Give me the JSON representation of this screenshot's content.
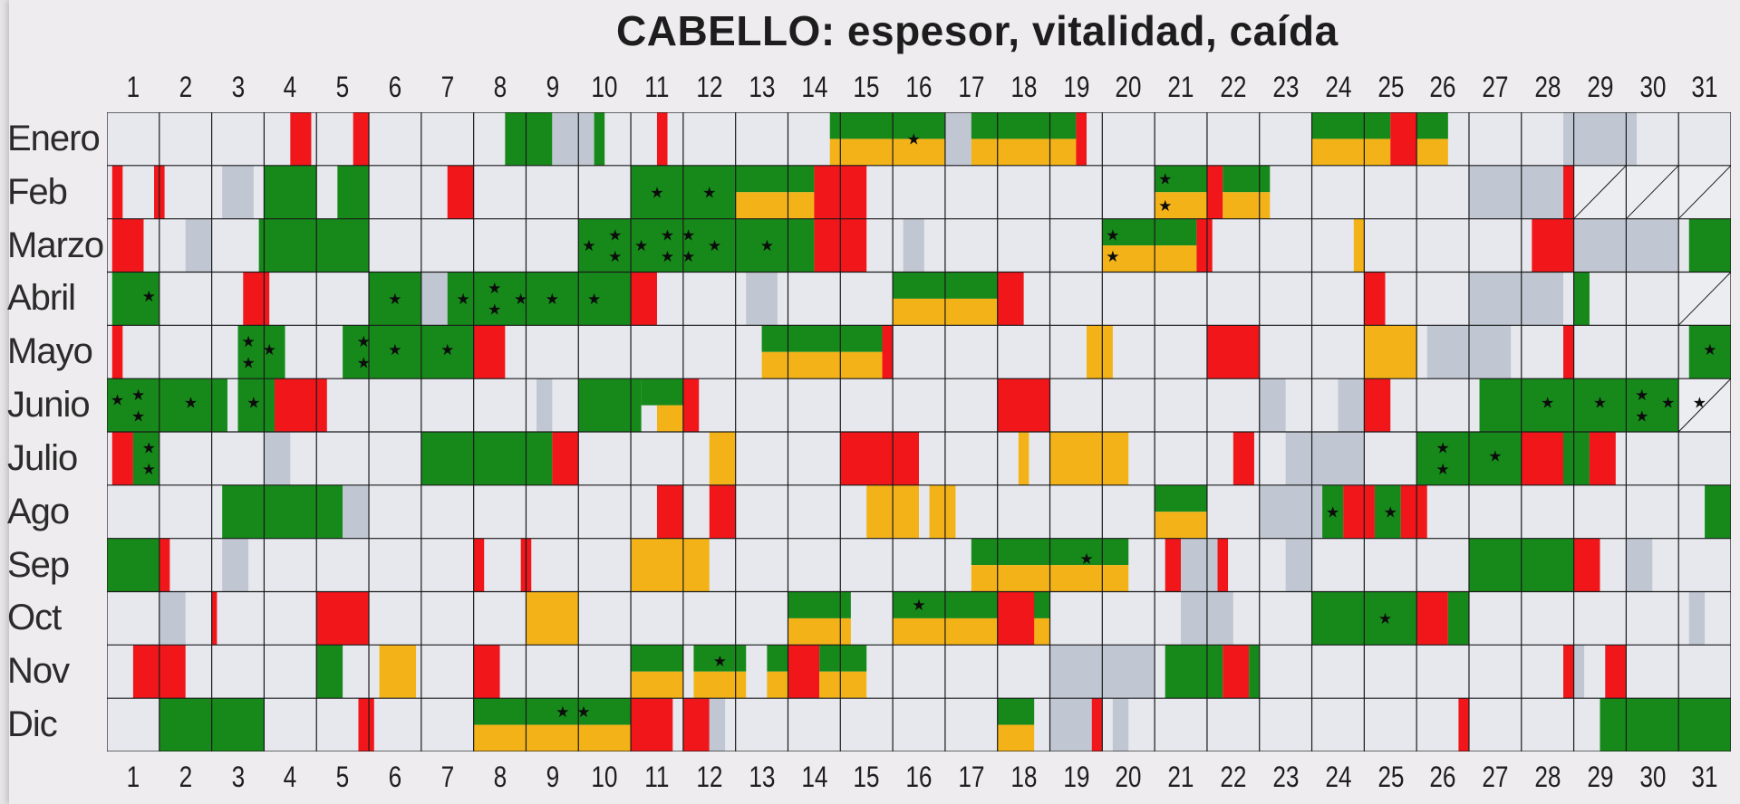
{
  "title": "CABELLO: espesor, vitalidad, caída",
  "days": [
    "1",
    "2",
    "3",
    "4",
    "5",
    "6",
    "7",
    "8",
    "9",
    "10",
    "11",
    "12",
    "13",
    "14",
    "15",
    "16",
    "17",
    "18",
    "19",
    "20",
    "21",
    "22",
    "23",
    "24",
    "25",
    "26",
    "27",
    "28",
    "29",
    "30",
    "31"
  ],
  "months": [
    "Enero",
    "Feb",
    "Marzo",
    "Abril",
    "Mayo",
    "Junio",
    "Julio",
    "Ago",
    "Sep",
    "Oct",
    "Nov",
    "Dic"
  ],
  "colors": {
    "cell": "#e6e8ee",
    "grid": "#1a1a1a",
    "green": "#16891a",
    "yellow": "#f3b318",
    "red": "#f0161a",
    "gray": "#c1c7d2",
    "star": "#0d0d0d"
  },
  "legend_symbol": "★",
  "calendar": [
    [
      {
        "s": 3.5,
        "e": 3.9,
        "c": "red"
      },
      {
        "s": 4.7,
        "e": 5.0,
        "c": "red"
      },
      {
        "s": 7.6,
        "e": 8.5,
        "c": "green"
      },
      {
        "s": 8.5,
        "e": 9.3,
        "c": "gray"
      },
      {
        "s": 9.3,
        "e": 9.5,
        "c": "green"
      },
      {
        "s": 10.5,
        "e": 10.7,
        "c": "red"
      },
      {
        "s": 13.8,
        "e": 16.0,
        "c": "green",
        "b": "top"
      },
      {
        "s": 13.8,
        "e": 16.0,
        "c": "yellow",
        "b": "bot"
      },
      {
        "s": 16.0,
        "e": 16.5,
        "c": "gray"
      },
      {
        "s": 16.5,
        "e": 18.5,
        "c": "green",
        "b": "top"
      },
      {
        "s": 16.5,
        "e": 18.5,
        "c": "yellow",
        "b": "bot"
      },
      {
        "s": 18.5,
        "e": 18.7,
        "c": "red"
      },
      {
        "s": 23.0,
        "e": 24.5,
        "c": "green",
        "b": "top"
      },
      {
        "s": 23.0,
        "e": 24.5,
        "c": "yellow",
        "b": "bot"
      },
      {
        "s": 24.5,
        "e": 25.0,
        "c": "red"
      },
      {
        "s": 25.0,
        "e": 25.6,
        "c": "green",
        "b": "top"
      },
      {
        "s": 25.0,
        "e": 25.6,
        "c": "yellow",
        "b": "bot"
      },
      {
        "s": 27.8,
        "e": 29.2,
        "c": "gray"
      }
    ],
    [
      {
        "s": 0.1,
        "e": 0.3,
        "c": "red"
      },
      {
        "s": 0.9,
        "e": 1.1,
        "c": "red"
      },
      {
        "s": 2.2,
        "e": 2.8,
        "c": "gray"
      },
      {
        "s": 3.0,
        "e": 4.0,
        "c": "green"
      },
      {
        "s": 4.4,
        "e": 5.0,
        "c": "green"
      },
      {
        "s": 6.5,
        "e": 7.0,
        "c": "red"
      },
      {
        "s": 10.0,
        "e": 12.0,
        "c": "green"
      },
      {
        "s": 12.0,
        "e": 13.5,
        "c": "green",
        "b": "top"
      },
      {
        "s": 12.0,
        "e": 13.5,
        "c": "yellow",
        "b": "bot"
      },
      {
        "s": 13.5,
        "e": 14.5,
        "c": "red"
      },
      {
        "s": 20.0,
        "e": 21.0,
        "c": "green",
        "b": "top"
      },
      {
        "s": 20.0,
        "e": 21.0,
        "c": "yellow",
        "b": "bot"
      },
      {
        "s": 21.0,
        "e": 21.3,
        "c": "red"
      },
      {
        "s": 21.3,
        "e": 22.2,
        "c": "green",
        "b": "top"
      },
      {
        "s": 21.3,
        "e": 22.2,
        "c": "yellow",
        "b": "bot"
      },
      {
        "s": 26.0,
        "e": 27.8,
        "c": "gray"
      },
      {
        "s": 27.8,
        "e": 28.0,
        "c": "red"
      }
    ],
    [
      {
        "s": 0.1,
        "e": 0.7,
        "c": "red"
      },
      {
        "s": 1.5,
        "e": 2.0,
        "c": "gray"
      },
      {
        "s": 2.9,
        "e": 5.0,
        "c": "green"
      },
      {
        "s": 9.0,
        "e": 13.5,
        "c": "green"
      },
      {
        "s": 13.5,
        "e": 14.5,
        "c": "red"
      },
      {
        "s": 15.2,
        "e": 15.6,
        "c": "gray"
      },
      {
        "s": 19.0,
        "e": 20.8,
        "c": "green",
        "b": "top"
      },
      {
        "s": 19.0,
        "e": 20.8,
        "c": "yellow",
        "b": "bot"
      },
      {
        "s": 20.8,
        "e": 21.1,
        "c": "red"
      },
      {
        "s": 23.8,
        "e": 24.0,
        "c": "yellow"
      },
      {
        "s": 27.2,
        "e": 28.0,
        "c": "red"
      },
      {
        "s": 28.0,
        "e": 30.0,
        "c": "gray"
      },
      {
        "s": 30.2,
        "e": 31.0,
        "c": "green"
      }
    ],
    [
      {
        "s": 0.1,
        "e": 1.0,
        "c": "green"
      },
      {
        "s": 2.6,
        "e": 3.1,
        "c": "red"
      },
      {
        "s": 5.0,
        "e": 6.0,
        "c": "green"
      },
      {
        "s": 6.0,
        "e": 6.5,
        "c": "gray"
      },
      {
        "s": 6.5,
        "e": 10.0,
        "c": "green"
      },
      {
        "s": 10.0,
        "e": 10.5,
        "c": "red"
      },
      {
        "s": 12.2,
        "e": 12.8,
        "c": "gray"
      },
      {
        "s": 15.0,
        "e": 17.0,
        "c": "green",
        "b": "top"
      },
      {
        "s": 15.0,
        "e": 17.0,
        "c": "yellow",
        "b": "bot"
      },
      {
        "s": 17.0,
        "e": 17.5,
        "c": "red"
      },
      {
        "s": 24.0,
        "e": 24.4,
        "c": "red"
      },
      {
        "s": 26.0,
        "e": 27.8,
        "c": "gray"
      },
      {
        "s": 28.0,
        "e": 28.3,
        "c": "green"
      }
    ],
    [
      {
        "s": 0.1,
        "e": 0.3,
        "c": "red"
      },
      {
        "s": 2.5,
        "e": 3.4,
        "c": "green"
      },
      {
        "s": 4.5,
        "e": 7.0,
        "c": "green"
      },
      {
        "s": 7.0,
        "e": 7.6,
        "c": "red"
      },
      {
        "s": 12.5,
        "e": 14.8,
        "c": "green",
        "b": "top"
      },
      {
        "s": 12.5,
        "e": 14.8,
        "c": "yellow",
        "b": "bot"
      },
      {
        "s": 14.8,
        "e": 15.0,
        "c": "red"
      },
      {
        "s": 18.7,
        "e": 19.2,
        "c": "yellow"
      },
      {
        "s": 21.0,
        "e": 22.0,
        "c": "red"
      },
      {
        "s": 24.0,
        "e": 25.0,
        "c": "yellow"
      },
      {
        "s": 25.2,
        "e": 26.8,
        "c": "gray"
      },
      {
        "s": 27.8,
        "e": 28.0,
        "c": "red"
      },
      {
        "s": 30.2,
        "e": 31.0,
        "c": "green"
      }
    ],
    [
      {
        "s": 0.0,
        "e": 2.3,
        "c": "green"
      },
      {
        "s": 2.5,
        "e": 3.2,
        "c": "green"
      },
      {
        "s": 3.2,
        "e": 4.2,
        "c": "red"
      },
      {
        "s": 8.2,
        "e": 8.5,
        "c": "gray"
      },
      {
        "s": 9.0,
        "e": 10.2,
        "c": "green"
      },
      {
        "s": 10.2,
        "e": 11.0,
        "c": "green",
        "b": "top"
      },
      {
        "s": 10.5,
        "e": 11.0,
        "c": "yellow",
        "b": "bot"
      },
      {
        "s": 11.0,
        "e": 11.3,
        "c": "red"
      },
      {
        "s": 17.0,
        "e": 18.0,
        "c": "red"
      },
      {
        "s": 22.0,
        "e": 22.5,
        "c": "gray"
      },
      {
        "s": 23.5,
        "e": 24.0,
        "c": "gray"
      },
      {
        "s": 24.0,
        "e": 24.5,
        "c": "red"
      },
      {
        "s": 26.2,
        "e": 30.0,
        "c": "green"
      }
    ],
    [
      {
        "s": 0.1,
        "e": 0.5,
        "c": "red"
      },
      {
        "s": 0.5,
        "e": 1.0,
        "c": "green"
      },
      {
        "s": 3.0,
        "e": 3.5,
        "c": "gray"
      },
      {
        "s": 6.0,
        "e": 8.5,
        "c": "green"
      },
      {
        "s": 8.5,
        "e": 9.0,
        "c": "red"
      },
      {
        "s": 11.5,
        "e": 12.0,
        "c": "yellow"
      },
      {
        "s": 14.0,
        "e": 15.5,
        "c": "red"
      },
      {
        "s": 17.4,
        "e": 17.6,
        "c": "yellow"
      },
      {
        "s": 18.0,
        "e": 19.5,
        "c": "yellow"
      },
      {
        "s": 21.5,
        "e": 21.9,
        "c": "red"
      },
      {
        "s": 22.5,
        "e": 24.0,
        "c": "gray"
      },
      {
        "s": 25.0,
        "e": 27.0,
        "c": "green"
      },
      {
        "s": 27.0,
        "e": 27.8,
        "c": "red"
      },
      {
        "s": 27.8,
        "e": 28.3,
        "c": "green"
      },
      {
        "s": 28.3,
        "e": 28.8,
        "c": "red"
      }
    ],
    [
      {
        "s": 2.2,
        "e": 4.5,
        "c": "green"
      },
      {
        "s": 4.5,
        "e": 5.0,
        "c": "gray"
      },
      {
        "s": 10.5,
        "e": 11.0,
        "c": "red"
      },
      {
        "s": 11.5,
        "e": 12.0,
        "c": "red"
      },
      {
        "s": 14.5,
        "e": 15.5,
        "c": "yellow"
      },
      {
        "s": 15.7,
        "e": 16.2,
        "c": "yellow"
      },
      {
        "s": 20.0,
        "e": 21.0,
        "c": "green",
        "b": "top"
      },
      {
        "s": 20.0,
        "e": 21.0,
        "c": "yellow",
        "b": "bot"
      },
      {
        "s": 22.0,
        "e": 24.0,
        "c": "gray"
      },
      {
        "s": 23.2,
        "e": 23.6,
        "c": "green"
      },
      {
        "s": 23.6,
        "e": 24.2,
        "c": "red"
      },
      {
        "s": 24.2,
        "e": 24.7,
        "c": "green"
      },
      {
        "s": 24.7,
        "e": 25.2,
        "c": "red"
      },
      {
        "s": 30.5,
        "e": 31.0,
        "c": "green"
      }
    ],
    [
      {
        "s": 0.0,
        "e": 1.0,
        "c": "green"
      },
      {
        "s": 1.0,
        "e": 1.2,
        "c": "red"
      },
      {
        "s": 2.2,
        "e": 2.7,
        "c": "gray"
      },
      {
        "s": 7.0,
        "e": 7.2,
        "c": "red"
      },
      {
        "s": 7.9,
        "e": 8.1,
        "c": "red"
      },
      {
        "s": 10.0,
        "e": 11.5,
        "c": "yellow"
      },
      {
        "s": 16.5,
        "e": 19.5,
        "c": "green",
        "b": "top"
      },
      {
        "s": 16.5,
        "e": 19.5,
        "c": "yellow",
        "b": "bot"
      },
      {
        "s": 20.2,
        "e": 20.5,
        "c": "red"
      },
      {
        "s": 20.5,
        "e": 21.2,
        "c": "gray"
      },
      {
        "s": 21.2,
        "e": 21.4,
        "c": "red"
      },
      {
        "s": 22.5,
        "e": 23.0,
        "c": "gray"
      },
      {
        "s": 26.0,
        "e": 28.0,
        "c": "green"
      },
      {
        "s": 28.0,
        "e": 28.5,
        "c": "red"
      },
      {
        "s": 29.0,
        "e": 29.5,
        "c": "gray"
      }
    ],
    [
      {
        "s": 1.0,
        "e": 1.5,
        "c": "gray"
      },
      {
        "s": 2.0,
        "e": 2.1,
        "c": "red"
      },
      {
        "s": 4.0,
        "e": 5.0,
        "c": "red"
      },
      {
        "s": 8.0,
        "e": 9.0,
        "c": "yellow"
      },
      {
        "s": 13.0,
        "e": 14.2,
        "c": "green",
        "b": "top"
      },
      {
        "s": 13.0,
        "e": 14.2,
        "c": "yellow",
        "b": "bot"
      },
      {
        "s": 15.0,
        "e": 18.0,
        "c": "green",
        "b": "top"
      },
      {
        "s": 15.0,
        "e": 18.0,
        "c": "yellow",
        "b": "bot"
      },
      {
        "s": 17.0,
        "e": 17.7,
        "c": "red"
      },
      {
        "s": 20.5,
        "e": 21.5,
        "c": "gray"
      },
      {
        "s": 23.0,
        "e": 25.0,
        "c": "green"
      },
      {
        "s": 25.0,
        "e": 25.6,
        "c": "red"
      },
      {
        "s": 25.6,
        "e": 26.0,
        "c": "green"
      },
      {
        "s": 30.2,
        "e": 30.5,
        "c": "gray"
      }
    ],
    [
      {
        "s": 0.5,
        "e": 1.5,
        "c": "red"
      },
      {
        "s": 4.0,
        "e": 4.5,
        "c": "green"
      },
      {
        "s": 5.2,
        "e": 5.9,
        "c": "yellow"
      },
      {
        "s": 7.0,
        "e": 7.5,
        "c": "red"
      },
      {
        "s": 10.0,
        "e": 11.0,
        "c": "green",
        "b": "top"
      },
      {
        "s": 10.0,
        "e": 11.0,
        "c": "yellow",
        "b": "bot"
      },
      {
        "s": 11.2,
        "e": 12.2,
        "c": "green",
        "b": "top"
      },
      {
        "s": 11.2,
        "e": 12.2,
        "c": "yellow",
        "b": "bot"
      },
      {
        "s": 12.6,
        "e": 13.0,
        "c": "green",
        "b": "top"
      },
      {
        "s": 12.6,
        "e": 13.0,
        "c": "yellow",
        "b": "bot"
      },
      {
        "s": 13.0,
        "e": 13.6,
        "c": "red"
      },
      {
        "s": 13.6,
        "e": 14.5,
        "c": "green",
        "b": "top"
      },
      {
        "s": 13.6,
        "e": 14.5,
        "c": "yellow",
        "b": "bot"
      },
      {
        "s": 18.0,
        "e": 20.0,
        "c": "gray"
      },
      {
        "s": 20.2,
        "e": 21.3,
        "c": "green"
      },
      {
        "s": 21.3,
        "e": 21.8,
        "c": "red"
      },
      {
        "s": 21.8,
        "e": 22.0,
        "c": "green"
      },
      {
        "s": 27.8,
        "e": 28.0,
        "c": "red"
      },
      {
        "s": 28.0,
        "e": 28.2,
        "c": "gray"
      },
      {
        "s": 28.6,
        "e": 29.0,
        "c": "red"
      }
    ],
    [
      {
        "s": 1.0,
        "e": 3.0,
        "c": "green"
      },
      {
        "s": 4.8,
        "e": 5.1,
        "c": "red"
      },
      {
        "s": 7.0,
        "e": 10.0,
        "c": "green",
        "b": "top"
      },
      {
        "s": 7.0,
        "e": 10.0,
        "c": "yellow",
        "b": "bot"
      },
      {
        "s": 10.0,
        "e": 10.8,
        "c": "red"
      },
      {
        "s": 11.0,
        "e": 11.5,
        "c": "red"
      },
      {
        "s": 11.5,
        "e": 11.8,
        "c": "gray"
      },
      {
        "s": 17.0,
        "e": 17.7,
        "c": "green",
        "b": "top"
      },
      {
        "s": 17.0,
        "e": 17.7,
        "c": "yellow",
        "b": "bot"
      },
      {
        "s": 18.0,
        "e": 18.8,
        "c": "gray"
      },
      {
        "s": 18.8,
        "e": 19.0,
        "c": "red"
      },
      {
        "s": 19.2,
        "e": 19.5,
        "c": "gray"
      },
      {
        "s": 25.8,
        "e": 26.0,
        "c": "red"
      },
      {
        "s": 28.5,
        "e": 31.0,
        "c": "green"
      }
    ]
  ],
  "stars": [
    [
      [
        15.4,
        0.5
      ]
    ],
    [
      [
        10.5,
        0.5
      ],
      [
        11.5,
        0.5
      ],
      [
        20.2,
        0.25
      ],
      [
        20.2,
        0.75
      ]
    ],
    [
      [
        9.2,
        0.5
      ],
      [
        9.7,
        0.3
      ],
      [
        9.7,
        0.7
      ],
      [
        10.2,
        0.5
      ],
      [
        10.7,
        0.3
      ],
      [
        10.7,
        0.7
      ],
      [
        11.1,
        0.3
      ],
      [
        11.1,
        0.7
      ],
      [
        11.6,
        0.5
      ],
      [
        12.6,
        0.5
      ],
      [
        19.2,
        0.3
      ],
      [
        19.2,
        0.7
      ]
    ],
    [
      [
        0.8,
        0.45
      ],
      [
        5.5,
        0.5
      ],
      [
        6.8,
        0.5
      ],
      [
        7.4,
        0.3
      ],
      [
        7.4,
        0.7
      ],
      [
        7.9,
        0.5
      ],
      [
        8.5,
        0.5
      ],
      [
        9.3,
        0.5
      ]
    ],
    [
      [
        2.7,
        0.3
      ],
      [
        2.7,
        0.7
      ],
      [
        3.1,
        0.45
      ],
      [
        4.9,
        0.3
      ],
      [
        4.9,
        0.7
      ],
      [
        5.5,
        0.45
      ],
      [
        6.5,
        0.45
      ],
      [
        30.6,
        0.45
      ]
    ],
    [
      [
        0.2,
        0.4
      ],
      [
        0.6,
        0.3
      ],
      [
        0.6,
        0.7
      ],
      [
        1.6,
        0.45
      ],
      [
        2.8,
        0.45
      ],
      [
        27.5,
        0.45
      ],
      [
        28.5,
        0.45
      ],
      [
        29.3,
        0.3
      ],
      [
        29.3,
        0.7
      ],
      [
        29.8,
        0.45
      ],
      [
        30.4,
        0.45
      ]
    ],
    [
      [
        0.8,
        0.3
      ],
      [
        0.8,
        0.7
      ],
      [
        25.5,
        0.3
      ],
      [
        25.5,
        0.7
      ],
      [
        26.5,
        0.45
      ]
    ],
    [
      [
        23.4,
        0.5
      ],
      [
        24.5,
        0.5
      ]
    ],
    [
      [
        18.7,
        0.38
      ]
    ],
    [
      [
        15.5,
        0.25
      ],
      [
        24.4,
        0.5
      ]
    ],
    [
      [
        11.7,
        0.3
      ]
    ],
    [
      [
        8.7,
        0.25
      ],
      [
        9.1,
        0.25
      ]
    ]
  ],
  "diagonal_cells": [
    [
      1,
      28
    ],
    [
      1,
      29
    ],
    [
      1,
      30
    ],
    [
      3,
      30
    ],
    [
      5,
      30
    ]
  ]
}
